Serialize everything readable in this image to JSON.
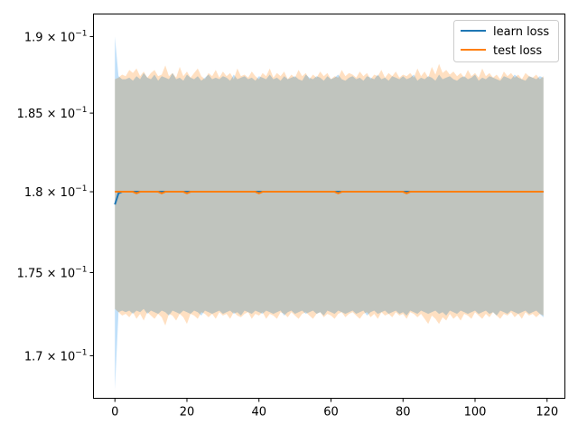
{
  "chart_data": {
    "type": "line",
    "title": "",
    "xlabel": "",
    "ylabel": "",
    "xlim": [
      -5.95,
      124.95
    ],
    "ylim": [
      0.1675,
      0.1915
    ],
    "yscale": "log",
    "grid": false,
    "legend_position": "top-right",
    "x_ticks": [
      0,
      20,
      40,
      60,
      80,
      100,
      120
    ],
    "x_tick_labels": [
      "0",
      "20",
      "40",
      "60",
      "80",
      "100",
      "120"
    ],
    "y_ticks": [
      {
        "value": 0.17,
        "base": "1.7",
        "mult": "× 10",
        "exp": "−1"
      },
      {
        "value": 0.175,
        "base": "1.75",
        "mult": "× 10",
        "exp": "−1"
      },
      {
        "value": 0.18,
        "base": "1.8",
        "mult": "× 10",
        "exp": "−1"
      },
      {
        "value": 0.185,
        "base": "1.85",
        "mult": "× 10",
        "exp": "−1"
      },
      {
        "value": 0.19,
        "base": "1.9",
        "mult": "× 10",
        "exp": "−1"
      }
    ],
    "x_start": 0,
    "x_step": 1,
    "series": [
      {
        "name": "learn loss",
        "color": "#1f77b4",
        "band_color": "#8cc6f5",
        "mean": [
          0.1792,
          0.1799,
          0.18,
          0.18,
          0.18,
          0.18,
          0.18,
          0.18,
          0.18,
          0.18,
          0.18,
          0.18,
          0.18,
          0.18,
          0.18,
          0.18,
          0.18,
          0.18,
          0.18,
          0.18,
          0.18,
          0.18,
          0.18,
          0.18,
          0.18,
          0.18,
          0.18,
          0.18,
          0.18,
          0.18,
          0.18,
          0.18,
          0.18,
          0.18,
          0.18,
          0.18,
          0.18,
          0.18,
          0.18,
          0.18,
          0.18,
          0.18,
          0.18,
          0.18,
          0.18,
          0.18,
          0.18,
          0.18,
          0.18,
          0.18,
          0.18,
          0.18,
          0.18,
          0.18,
          0.18,
          0.18,
          0.18,
          0.18,
          0.18,
          0.18,
          0.18,
          0.18,
          0.18,
          0.18,
          0.18,
          0.18,
          0.18,
          0.18,
          0.18,
          0.18,
          0.18,
          0.18,
          0.18,
          0.18,
          0.18,
          0.18,
          0.18,
          0.18,
          0.18,
          0.18,
          0.18,
          0.18,
          0.18,
          0.18,
          0.18,
          0.18,
          0.18,
          0.18,
          0.18,
          0.18,
          0.18,
          0.18,
          0.18,
          0.18,
          0.18,
          0.18,
          0.18,
          0.18,
          0.18,
          0.18,
          0.18,
          0.18,
          0.18,
          0.18,
          0.18,
          0.18,
          0.18,
          0.18,
          0.18,
          0.18,
          0.18,
          0.18,
          0.18,
          0.18,
          0.18,
          0.18,
          0.18,
          0.18,
          0.18,
          0.18
        ],
        "upper": [
          0.19,
          0.1874,
          0.1872,
          0.1872,
          0.1873,
          0.1871,
          0.1874,
          0.1872,
          0.1876,
          0.1873,
          0.1872,
          0.1875,
          0.1871,
          0.1874,
          0.1873,
          0.1872,
          0.1876,
          0.1872,
          0.1873,
          0.1871,
          0.1875,
          0.1873,
          0.1872,
          0.1874,
          0.1871,
          0.1873,
          0.1875,
          0.1872,
          0.1873,
          0.1872,
          0.1874,
          0.1873,
          0.1871,
          0.1875,
          0.1872,
          0.1873,
          0.1874,
          0.1872,
          0.1873,
          0.1871,
          0.1874,
          0.1873,
          0.1872,
          0.1875,
          0.1872,
          0.1873,
          0.1871,
          0.1874,
          0.1872,
          0.1873,
          0.1874,
          0.1872,
          0.1871,
          0.1875,
          0.1873,
          0.1872,
          0.1874,
          0.1873,
          0.1871,
          0.1874,
          0.1872,
          0.1873,
          0.1875,
          0.1872,
          0.1871,
          0.1873,
          0.1874,
          0.1872,
          0.1873,
          0.1871,
          0.1874,
          0.1873,
          0.1872,
          0.1875,
          0.1872,
          0.1873,
          0.1871,
          0.1874,
          0.1873,
          0.1872,
          0.1874,
          0.1872,
          0.1873,
          0.1875,
          0.1871,
          0.1873,
          0.1872,
          0.1874,
          0.1873,
          0.1871,
          0.1875,
          0.1872,
          0.1873,
          0.1874,
          0.1872,
          0.1871,
          0.1873,
          0.1874,
          0.1872,
          0.1873,
          0.1875,
          0.1871,
          0.1873,
          0.1872,
          0.1874,
          0.1873,
          0.1872,
          0.1871,
          0.1874,
          0.1873,
          0.1872,
          0.1875,
          0.1873,
          0.1872,
          0.1871,
          0.1874,
          0.1873,
          0.1872,
          0.1874,
          0.1873
        ],
        "lower": [
          0.168,
          0.1726,
          0.1727,
          0.1726,
          0.1727,
          0.1725,
          0.1727,
          0.1726,
          0.1728,
          0.1725,
          0.1727,
          0.1726,
          0.1725,
          0.1727,
          0.1726,
          0.1724,
          0.1727,
          0.1726,
          0.1725,
          0.1727,
          0.1726,
          0.1725,
          0.1727,
          0.1726,
          0.1724,
          0.1727,
          0.1726,
          0.1725,
          0.1726,
          0.1727,
          0.1725,
          0.1726,
          0.1727,
          0.1725,
          0.1726,
          0.1724,
          0.1727,
          0.1726,
          0.1725,
          0.1727,
          0.1726,
          0.1725,
          0.1727,
          0.1726,
          0.1725,
          0.1726,
          0.1727,
          0.1724,
          0.1726,
          0.1727,
          0.1725,
          0.1726,
          0.1727,
          0.1725,
          0.1726,
          0.1727,
          0.1725,
          0.1726,
          0.1724,
          0.1727,
          0.1726,
          0.1725,
          0.1727,
          0.1726,
          0.1725,
          0.1726,
          0.1727,
          0.1725,
          0.1726,
          0.1727,
          0.1724,
          0.1726,
          0.1727,
          0.1725,
          0.1726,
          0.1727,
          0.1725,
          0.1726,
          0.1727,
          0.1725,
          0.1726,
          0.1724,
          0.1727,
          0.1726,
          0.1725,
          0.1727,
          0.1726,
          0.1725,
          0.1726,
          0.1727,
          0.1725,
          0.1726,
          0.1724,
          0.1727,
          0.1726,
          0.1725,
          0.1727,
          0.1726,
          0.1725,
          0.1726,
          0.1727,
          0.1725,
          0.1726,
          0.1727,
          0.1725,
          0.1726,
          0.1724,
          0.1727,
          0.1726,
          0.1725,
          0.1727,
          0.1726,
          0.1725,
          0.1726,
          0.1727,
          0.1725,
          0.1726,
          0.1727,
          0.1725,
          0.1723
        ]
      },
      {
        "name": "test loss",
        "color": "#ff7f0e",
        "band_color": "#ffcc99",
        "mean": [
          0.18,
          0.18,
          0.18,
          0.18,
          0.18,
          0.18,
          0.1799,
          0.18,
          0.18,
          0.18,
          0.18,
          0.18,
          0.18,
          0.1799,
          0.18,
          0.18,
          0.18,
          0.18,
          0.18,
          0.18,
          0.1799,
          0.18,
          0.18,
          0.18,
          0.18,
          0.18,
          0.18,
          0.18,
          0.18,
          0.18,
          0.18,
          0.18,
          0.18,
          0.18,
          0.18,
          0.18,
          0.18,
          0.18,
          0.18,
          0.18,
          0.1799,
          0.18,
          0.18,
          0.18,
          0.18,
          0.18,
          0.18,
          0.18,
          0.18,
          0.18,
          0.18,
          0.18,
          0.18,
          0.18,
          0.18,
          0.18,
          0.18,
          0.18,
          0.18,
          0.18,
          0.18,
          0.18,
          0.1799,
          0.18,
          0.18,
          0.18,
          0.18,
          0.18,
          0.18,
          0.18,
          0.18,
          0.18,
          0.18,
          0.18,
          0.18,
          0.18,
          0.18,
          0.18,
          0.18,
          0.18,
          0.18,
          0.1799,
          0.18,
          0.18,
          0.18,
          0.18,
          0.18,
          0.18,
          0.18,
          0.18,
          0.18,
          0.18,
          0.18,
          0.18,
          0.18,
          0.18,
          0.18,
          0.18,
          0.18,
          0.18,
          0.18,
          0.18,
          0.18,
          0.18,
          0.18,
          0.18,
          0.18,
          0.18,
          0.18,
          0.18,
          0.18,
          0.18,
          0.18,
          0.18,
          0.18,
          0.18,
          0.18,
          0.18,
          0.18,
          0.18
        ],
        "upper": [
          0.1872,
          0.1873,
          0.1875,
          0.1874,
          0.1878,
          0.1876,
          0.1879,
          0.1874,
          0.1877,
          0.1873,
          0.1876,
          0.1878,
          0.1874,
          0.1875,
          0.1881,
          0.1874,
          0.1876,
          0.1873,
          0.188,
          0.1874,
          0.1877,
          0.1873,
          0.1876,
          0.1879,
          0.1874,
          0.1872,
          0.1876,
          0.1874,
          0.1878,
          0.1873,
          0.1877,
          0.1874,
          0.1876,
          0.1872,
          0.1879,
          0.1874,
          0.1875,
          0.1873,
          0.1877,
          0.1874,
          0.1872,
          0.1876,
          0.1874,
          0.1879,
          0.1873,
          0.1876,
          0.1874,
          0.1877,
          0.1872,
          0.1875,
          0.1873,
          0.1878,
          0.1874,
          0.1876,
          0.1872,
          0.1875,
          0.1873,
          0.1877,
          0.1874,
          0.1876,
          0.1872,
          0.1874,
          0.1873,
          0.1878,
          0.1874,
          0.1876,
          0.1875,
          0.1873,
          0.1877,
          0.1874,
          0.1876,
          0.1872,
          0.1875,
          0.1874,
          0.1878,
          0.1873,
          0.1876,
          0.1874,
          0.1877,
          0.1873,
          0.1875,
          0.1874,
          0.1876,
          0.1873,
          0.1879,
          0.1874,
          0.1877,
          0.1873,
          0.188,
          0.1875,
          0.1882,
          0.1876,
          0.1878,
          0.1875,
          0.1877,
          0.1874,
          0.1876,
          0.1873,
          0.1878,
          0.1874,
          0.1876,
          0.1873,
          0.1879,
          0.1874,
          0.1876,
          0.1873,
          0.1875,
          0.1872,
          0.1877,
          0.1874,
          0.1876,
          0.1873,
          0.1875,
          0.1872,
          0.1876,
          0.1874,
          0.1873,
          0.1875,
          0.1872,
          0.1874
        ],
        "lower": [
          0.1728,
          0.1726,
          0.1724,
          0.1725,
          0.1723,
          0.1726,
          0.1722,
          0.1725,
          0.1721,
          0.1726,
          0.1724,
          0.1722,
          0.1725,
          0.1723,
          0.1718,
          0.1725,
          0.1724,
          0.1721,
          0.1725,
          0.1723,
          0.1719,
          0.1725,
          0.1724,
          0.1722,
          0.1726,
          0.1725,
          0.1723,
          0.1725,
          0.1722,
          0.1726,
          0.1724,
          0.1725,
          0.1722,
          0.1726,
          0.1724,
          0.1723,
          0.1725,
          0.1726,
          0.1722,
          0.1725,
          0.1724,
          0.1726,
          0.1722,
          0.1725,
          0.1724,
          0.1722,
          0.1726,
          0.1725,
          0.1723,
          0.1726,
          0.1724,
          0.1722,
          0.1725,
          0.1726,
          0.1724,
          0.1722,
          0.1725,
          0.1726,
          0.1723,
          0.1725,
          0.1724,
          0.1722,
          0.1725,
          0.1726,
          0.1723,
          0.1725,
          0.1726,
          0.1724,
          0.1722,
          0.1725,
          0.1726,
          0.1723,
          0.1725,
          0.1722,
          0.1726,
          0.1724,
          0.1725,
          0.1723,
          0.1726,
          0.1724,
          0.1725,
          0.1722,
          0.1726,
          0.1725,
          0.1723,
          0.1725,
          0.1722,
          0.1719,
          0.1724,
          0.1722,
          0.1719,
          0.1723,
          0.1721,
          0.1725,
          0.1722,
          0.1724,
          0.1721,
          0.1725,
          0.1724,
          0.1722,
          0.1726,
          0.1724,
          0.1722,
          0.1725,
          0.1723,
          0.1726,
          0.1724,
          0.1722,
          0.1725,
          0.1724,
          0.1726,
          0.1723,
          0.1725,
          0.1722,
          0.1726,
          0.1724,
          0.1725,
          0.1723,
          0.1725,
          0.1724
        ]
      }
    ]
  }
}
